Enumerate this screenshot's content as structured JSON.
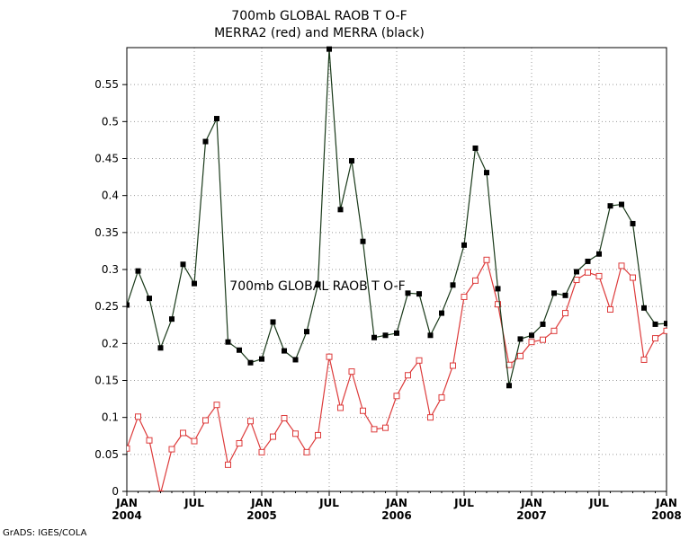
{
  "chart_data": {
    "type": "line",
    "title": "700mb GLOBAL RAOB T O-F",
    "subtitle": "MERRA2 (red) and MERRA (black)",
    "annotation": "700mb GLOBAL RAOB T O-F",
    "credit": "GrADS: IGES/COLA",
    "xlabel": "",
    "ylabel": "",
    "ylim": [
      0,
      0.6
    ],
    "y_ticks": [
      0,
      0.05,
      0.1,
      0.15,
      0.2,
      0.25,
      0.3,
      0.35,
      0.4,
      0.45,
      0.5,
      0.55
    ],
    "y_tick_labels": [
      "0",
      "0.05",
      "0.1",
      "0.15",
      "0.2",
      "0.25",
      "0.3",
      "0.35",
      "0.4",
      "0.45",
      "0.5",
      "0.55"
    ],
    "x_ticks": [
      {
        "month_index": 0,
        "label": "JAN",
        "year": "2004"
      },
      {
        "month_index": 6,
        "label": "JUL",
        "year": ""
      },
      {
        "month_index": 12,
        "label": "JAN",
        "year": "2005"
      },
      {
        "month_index": 18,
        "label": "JUL",
        "year": ""
      },
      {
        "month_index": 24,
        "label": "JAN",
        "year": "2006"
      },
      {
        "month_index": 30,
        "label": "JUL",
        "year": ""
      },
      {
        "month_index": 36,
        "label": "JAN",
        "year": "2007"
      },
      {
        "month_index": 42,
        "label": "JUL",
        "year": ""
      },
      {
        "month_index": 48,
        "label": "JAN",
        "year": "2008"
      }
    ],
    "grid": true,
    "series": [
      {
        "name": "MERRA",
        "line_color": "#1a3a1a",
        "marker_color": "#000000",
        "marker": "filled-square",
        "values": [
          0.252,
          0.298,
          0.261,
          0.194,
          0.233,
          0.307,
          0.281,
          0.473,
          0.504,
          0.202,
          0.191,
          0.174,
          0.179,
          0.229,
          0.19,
          0.178,
          0.216,
          0.28,
          0.598,
          0.381,
          0.447,
          0.338,
          0.208,
          0.211,
          0.214,
          0.268,
          0.267,
          0.211,
          0.241,
          0.279,
          0.333,
          0.464,
          0.431,
          0.274,
          0.143,
          0.206,
          0.211,
          0.226,
          0.268,
          0.265,
          0.297,
          0.311,
          0.321,
          0.386,
          0.388,
          0.362,
          0.248,
          0.226,
          0.227
        ]
      },
      {
        "name": "MERRA2",
        "line_color": "#dd3b3b",
        "marker_color": "#dd3b3b",
        "marker": "open-square",
        "values": [
          0.058,
          0.101,
          0.069,
          -0.003,
          0.057,
          0.079,
          0.068,
          0.096,
          0.117,
          0.036,
          0.065,
          0.095,
          0.053,
          0.074,
          0.099,
          0.078,
          0.053,
          0.076,
          0.182,
          0.113,
          0.162,
          0.109,
          0.084,
          0.086,
          0.129,
          0.157,
          0.177,
          0.1,
          0.127,
          0.17,
          0.263,
          0.285,
          0.313,
          0.253,
          0.171,
          0.183,
          0.202,
          0.205,
          0.217,
          0.241,
          0.286,
          0.296,
          0.291,
          0.246,
          0.305,
          0.289,
          0.178,
          0.207,
          0.217
        ]
      }
    ]
  }
}
